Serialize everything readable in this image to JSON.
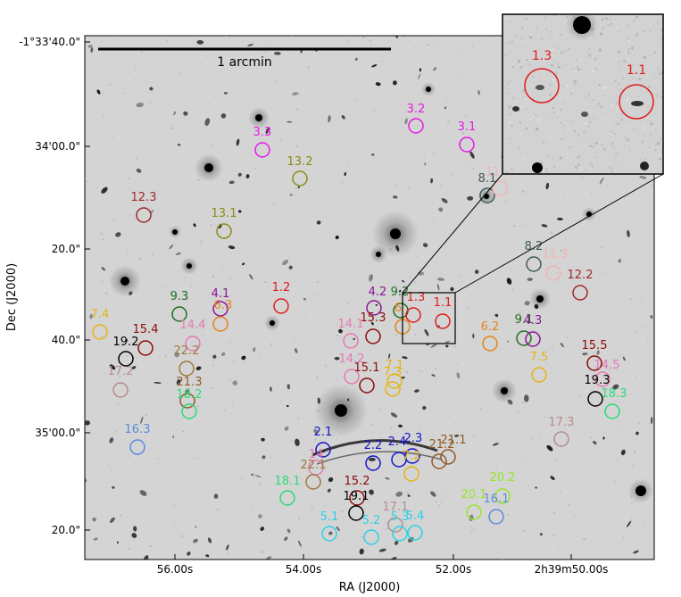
{
  "figure": {
    "scale_bar_label": "1 arcmin",
    "x_axis_label": "RA (J2000)",
    "y_axis_label": "Dec (J2000)",
    "x_ticks": [
      "56.00s",
      "54.00s",
      "52.00s",
      "2h39m50.00s"
    ],
    "y_ticks": [
      "-1°33'40.0\"",
      "34'00.0\"",
      "20.0\"",
      "40.0\"",
      "35'00.0\"",
      "20.0\""
    ]
  },
  "inset": {
    "labels": [
      {
        "text": "1.3",
        "color": "#e31a1c"
      },
      {
        "text": "1.1",
        "color": "#e31a1c"
      }
    ]
  },
  "markers": [
    {
      "text": "3.2",
      "color": "#e619e6"
    },
    {
      "text": "3.1",
      "color": "#e619e6"
    },
    {
      "text": "3.3",
      "color": "#e619e6"
    },
    {
      "text": "13.2",
      "color": "#8b8b14"
    },
    {
      "text": "8.1",
      "color": "#3c5a5a"
    },
    {
      "text": "11",
      "color": "#f0b4b4"
    },
    {
      "text": "12.3",
      "color": "#a0282d"
    },
    {
      "text": "13.1",
      "color": "#8b8b14"
    },
    {
      "text": "8.2",
      "color": "#3c5a5a"
    },
    {
      "text": "11.3",
      "color": "#f0b4b4"
    },
    {
      "text": "12.2",
      "color": "#a0282d"
    },
    {
      "text": "1.2",
      "color": "#e31a1c"
    },
    {
      "text": "9.3",
      "color": "#1e6e1e"
    },
    {
      "text": "4.1",
      "color": "#8c1496"
    },
    {
      "text": "6.3",
      "color": "#e68214"
    },
    {
      "text": "4.2",
      "color": "#8c1496"
    },
    {
      "text": "9.2",
      "color": "#1e6e1e"
    },
    {
      "text": "1.3",
      "color": "#e31a1c"
    },
    {
      "text": "6",
      "color": "#e68214"
    },
    {
      "text": "1.1",
      "color": "#e31a1c"
    },
    {
      "text": "7.4",
      "color": "#e6b414"
    },
    {
      "text": "15.4",
      "color": "#8c0a0a"
    },
    {
      "text": "19.2",
      "color": "#000000"
    },
    {
      "text": "14.4",
      "color": "#e678b4"
    },
    {
      "text": "14.1",
      "color": "#e678b4"
    },
    {
      "text": "15.3",
      "color": "#8c0a0a"
    },
    {
      "text": "6.2",
      "color": "#e68214"
    },
    {
      "text": "9.1",
      "color": "#1e6e1e"
    },
    {
      "text": "4.3",
      "color": "#8c1496"
    },
    {
      "text": "15.5",
      "color": "#8c0a0a"
    },
    {
      "text": "22.2",
      "color": "#a0783c"
    },
    {
      "text": "17.2",
      "color": "#b48c8c"
    },
    {
      "text": "14.2",
      "color": "#e678b4"
    },
    {
      "text": "15.1",
      "color": "#8c0a0a"
    },
    {
      "text": "7.1",
      "color": "#e6b414"
    },
    {
      "text": "7.5",
      "color": "#e6b414"
    },
    {
      "text": "14.5",
      "color": "#e678b4"
    },
    {
      "text": "21.3",
      "color": "#8c5a28"
    },
    {
      "text": "18.2",
      "color": "#28dc78"
    },
    {
      "text": "7.3",
      "color": "#e6b414"
    },
    {
      "text": "19.3",
      "color": "#000000"
    },
    {
      "text": "18.3",
      "color": "#28dc78"
    },
    {
      "text": "17.3",
      "color": "#b48c8c"
    },
    {
      "text": "16.3",
      "color": "#5a8cdc"
    },
    {
      "text": "2.1",
      "color": "#1414c8"
    },
    {
      "text": "2.2",
      "color": "#1414c8"
    },
    {
      "text": "2.4",
      "color": "#1414c8"
    },
    {
      "text": "2.3",
      "color": "#1414c8"
    },
    {
      "text": "7.2",
      "color": "#e6b414"
    },
    {
      "text": "21.2",
      "color": "#8c5a28"
    },
    {
      "text": "21.1",
      "color": "#8c5a28"
    },
    {
      "text": "14",
      "color": "#e678b4"
    },
    {
      "text": "22.1",
      "color": "#a0783c"
    },
    {
      "text": "18.1",
      "color": "#28dc78"
    },
    {
      "text": "15.2",
      "color": "#8c0a0a"
    },
    {
      "text": "19.1",
      "color": "#000000"
    },
    {
      "text": "20.2",
      "color": "#96e628"
    },
    {
      "text": "20.1",
      "color": "#96e628"
    },
    {
      "text": "16.1",
      "color": "#5a8cdc"
    },
    {
      "text": "17.1",
      "color": "#b48c8c"
    },
    {
      "text": "5.1",
      "color": "#28d2e6"
    },
    {
      "text": "5.2",
      "color": "#28d2e6"
    },
    {
      "text": "5.3",
      "color": "#28d2e6"
    },
    {
      "text": "5.4",
      "color": "#28d2e6"
    }
  ]
}
